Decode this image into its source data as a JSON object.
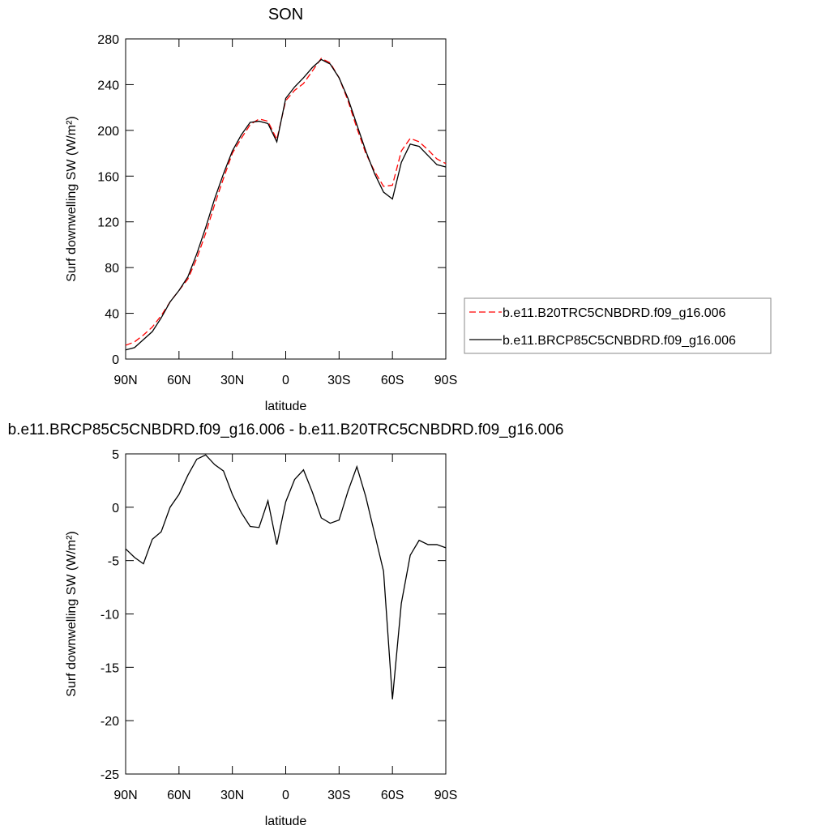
{
  "chart_data": [
    {
      "type": "line",
      "title": "SON",
      "x_label": "latitude",
      "y_label": "Surf downwelling SW (W/m²)",
      "x": [
        90,
        85,
        80,
        75,
        70,
        65,
        60,
        55,
        50,
        45,
        40,
        35,
        30,
        25,
        20,
        15,
        10,
        5,
        0,
        -5,
        -10,
        -15,
        -20,
        -25,
        -30,
        -35,
        -40,
        -45,
        -50,
        -55,
        -60,
        -65,
        -70,
        -75,
        -80,
        -85,
        -90
      ],
      "series": [
        {
          "name": "b.e11.B20TRC5CNBDRD.f09_g16.006",
          "color": "#ff0000",
          "dash": true,
          "values": [
            12,
            15,
            21,
            28,
            38,
            50,
            60,
            70,
            88,
            110,
            135,
            158,
            180,
            193,
            205,
            210,
            208,
            192,
            226,
            235,
            241,
            252,
            263,
            259,
            246,
            226,
            202,
            180,
            164,
            151,
            152,
            182,
            193,
            190,
            183,
            175,
            171
          ]
        },
        {
          "name": "b.e11.BRCP85C5CNBDRD.f09_g16.006",
          "color": "#000000",
          "dash": false,
          "values": [
            8,
            10,
            17,
            24,
            36,
            50,
            60,
            72,
            92,
            115,
            140,
            162,
            182,
            196,
            207,
            208,
            206,
            190,
            228,
            238,
            246,
            255,
            262,
            258,
            246,
            228,
            205,
            182,
            162,
            146,
            140,
            172,
            188,
            186,
            178,
            170,
            168
          ]
        }
      ],
      "xlim": [
        90,
        -90
      ],
      "xticks": [
        {
          "value": 90,
          "label": "90N"
        },
        {
          "value": 60,
          "label": "60N"
        },
        {
          "value": 30,
          "label": "30N"
        },
        0,
        {
          "value": -30,
          "label": "30S"
        },
        {
          "value": -60,
          "label": "60S"
        },
        {
          "value": -90,
          "label": "90S"
        }
      ],
      "ylim": [
        0,
        280
      ],
      "yticks": [
        0,
        40,
        80,
        120,
        160,
        200,
        240,
        280
      ],
      "legend": "right"
    },
    {
      "type": "line",
      "title": "b.e11.BRCP85C5CNBDRD.f09_g16.006 - b.e11.B20TRC5CNBDRD.f09_g16.006",
      "x_label": "latitude",
      "y_label": "Surf downwelling SW (W/m²)",
      "x": [
        90,
        85,
        80,
        75,
        70,
        65,
        60,
        55,
        50,
        45,
        40,
        35,
        30,
        25,
        20,
        15,
        10,
        5,
        0,
        -5,
        -10,
        -15,
        -20,
        -25,
        -30,
        -35,
        -40,
        -45,
        -50,
        -55,
        -60,
        -65,
        -70,
        -75,
        -80,
        -85,
        -90
      ],
      "series": [
        {
          "color": "#000000",
          "dash": false,
          "values": [
            -3.9,
            -4.7,
            -5.3,
            -3,
            -2.3,
            0,
            1.2,
            3,
            4.5,
            4.9,
            4,
            3.4,
            1.2,
            -0.5,
            -1.8,
            -1.9,
            0.6,
            -3.5,
            0.5,
            2.6,
            3.5,
            1.4,
            -1,
            -1.5,
            -1.2,
            1.5,
            3.8,
            1,
            -2.5,
            -6,
            -18,
            -9,
            -4.5,
            -3.1,
            -3.5,
            -3.5,
            -3.8
          ]
        }
      ],
      "xlim": [
        90,
        -90
      ],
      "xticks": [
        {
          "value": 90,
          "label": "90N"
        },
        {
          "value": 60,
          "label": "60N"
        },
        {
          "value": 30,
          "label": "30N"
        },
        0,
        {
          "value": -30,
          "label": "30S"
        },
        {
          "value": -60,
          "label": "60S"
        },
        {
          "value": -90,
          "label": "90S"
        }
      ],
      "ylim": [
        -25,
        5
      ],
      "yticks": [
        -25,
        -20,
        -15,
        -10,
        -5,
        0,
        5
      ]
    }
  ]
}
